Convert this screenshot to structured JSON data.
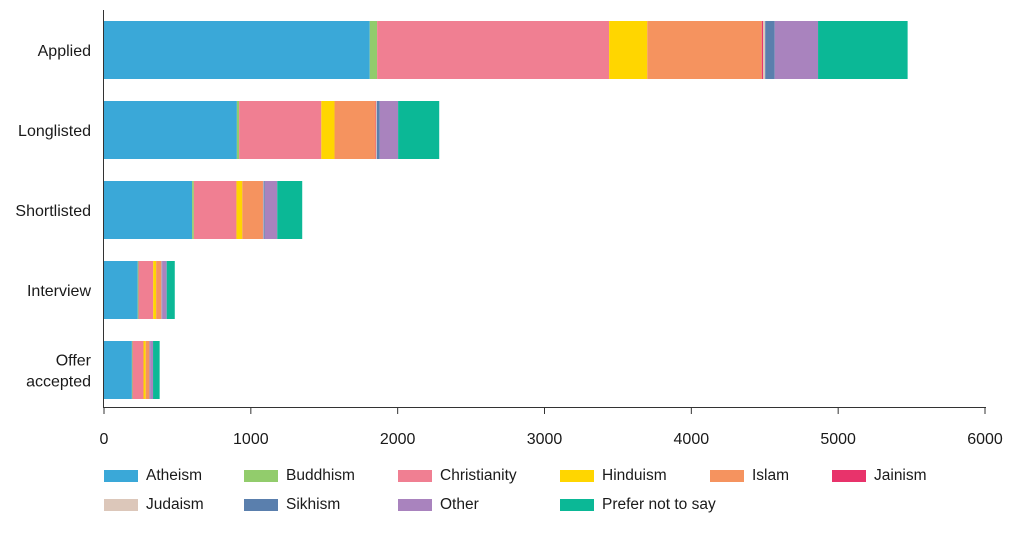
{
  "chart_data": {
    "type": "bar",
    "orientation": "horizontal",
    "stacked": true,
    "title": "",
    "xlabel": "",
    "ylabel": "",
    "xlim": [
      0,
      6000
    ],
    "x_ticks": [
      "0",
      "1000",
      "2000",
      "3000",
      "4000",
      "5000",
      "6000"
    ],
    "grid": false,
    "legend_position": "bottom",
    "categories": [
      [
        "Applied"
      ],
      [
        "Longlisted"
      ],
      [
        "Shortlisted"
      ],
      [
        "Interview"
      ],
      [
        "Offer",
        "accepted"
      ]
    ],
    "series": [
      {
        "name": "Atheism",
        "color": "#3aa8d8",
        "values": [
          1810,
          905,
          600,
          230,
          190
        ]
      },
      {
        "name": "Buddhism",
        "color": "#92cc6c",
        "values": [
          50,
          15,
          12,
          5,
          4
        ]
      },
      {
        "name": "Christianity",
        "color": "#f07f92",
        "values": [
          1580,
          560,
          290,
          100,
          75
        ]
      },
      {
        "name": "Hinduism",
        "color": "#ffd600",
        "values": [
          260,
          90,
          40,
          20,
          15
        ]
      },
      {
        "name": "Islam",
        "color": "#f5935f",
        "values": [
          780,
          280,
          140,
          35,
          25
        ]
      },
      {
        "name": "Jainism",
        "color": "#e8336b",
        "values": [
          8,
          3,
          2,
          1,
          1
        ]
      },
      {
        "name": "Judaism",
        "color": "#dcc7ba",
        "values": [
          15,
          5,
          3,
          2,
          1
        ]
      },
      {
        "name": "Sikhism",
        "color": "#5a7fad",
        "values": [
          65,
          20,
          8,
          4,
          3
        ]
      },
      {
        "name": "Other",
        "color": "#a983be",
        "values": [
          295,
          125,
          85,
          30,
          20
        ]
      },
      {
        "name": "Prefer not to say",
        "color": "#0bb896",
        "values": [
          610,
          280,
          170,
          55,
          45
        ]
      }
    ]
  }
}
